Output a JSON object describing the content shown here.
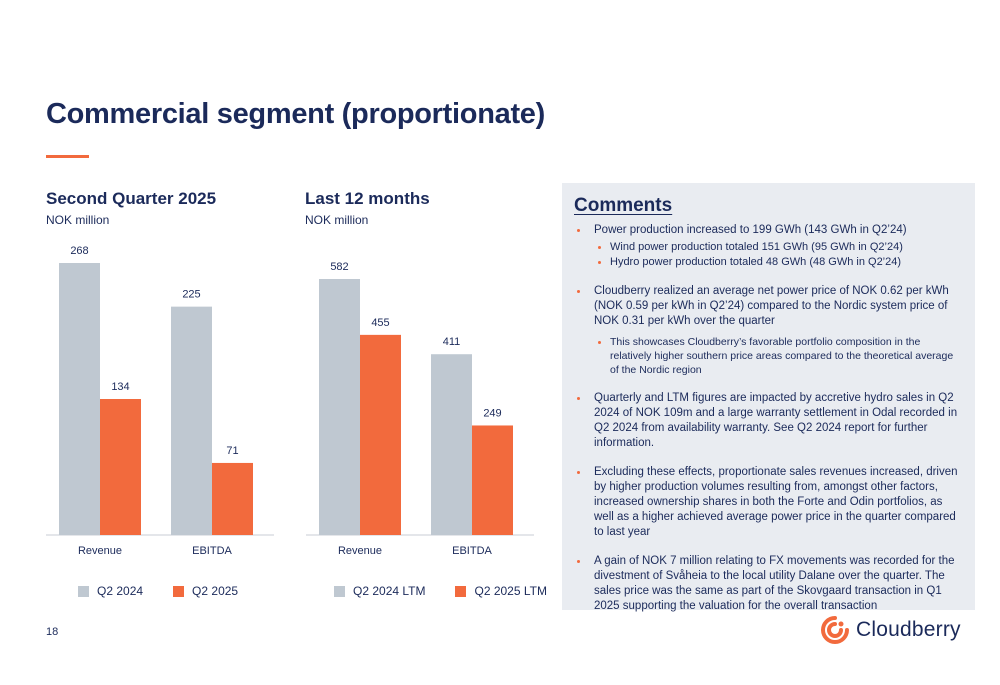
{
  "page": {
    "title": "Commercial segment (proportionate)",
    "page_number": "18"
  },
  "colors": {
    "accent": "#f26a3d",
    "navy": "#1b2a5a",
    "grey_bar": "#bfc8d1",
    "orange_bar": "#f26a3d",
    "panel_bg": "#e9ecf1"
  },
  "chart_left": {
    "title": "Second Quarter 2025",
    "unit": "NOK million",
    "legend": [
      "Q2 2024",
      "Q2 2025"
    ]
  },
  "chart_right": {
    "title": "Last 12 months",
    "unit": "NOK million",
    "legend": [
      "Q2 2024 LTM",
      "Q2 2025 LTM"
    ]
  },
  "chart_data": [
    {
      "type": "bar",
      "title": "Second Quarter 2025",
      "ylabel": "NOK million",
      "categories": [
        "Revenue",
        "EBITDA"
      ],
      "series": [
        {
          "name": "Q2 2024",
          "values": [
            268,
            225
          ]
        },
        {
          "name": "Q2 2025",
          "values": [
            134,
            71
          ]
        }
      ],
      "ylim": [
        0,
        268
      ],
      "grid": false,
      "legend_position": "bottom"
    },
    {
      "type": "bar",
      "title": "Last 12 months",
      "ylabel": "NOK million",
      "categories": [
        "Revenue",
        "EBITDA"
      ],
      "series": [
        {
          "name": "Q2 2024 LTM",
          "values": [
            582,
            411
          ]
        },
        {
          "name": "Q2 2025 LTM",
          "values": [
            455,
            249
          ]
        }
      ],
      "ylim": [
        0,
        582
      ],
      "grid": false,
      "legend_position": "bottom"
    }
  ],
  "comments": {
    "heading": "Comments",
    "bullets": [
      {
        "text": "Power production increased to 199 GWh (143 GWh in Q2’24)",
        "sub": [
          "Wind power production totaled 151 GWh (95 GWh in Q2’24)",
          "Hydro power production totaled 48 GWh (48 GWh in Q2’24)"
        ]
      },
      {
        "text": "Cloudberry realized an average net power price of NOK 0.62 per kWh (NOK 0.59 per kWh in Q2’24) compared to the Nordic system price of NOK 0.31 per kWh over the quarter",
        "sub": [
          "This showcases Cloudberry’s favorable portfolio composition in the relatively higher southern price areas compared to the theoretical average of the Nordic region"
        ]
      },
      {
        "text": "Quarterly and LTM figures are impacted by accretive hydro sales in Q2 2024 of NOK 109m and a large warranty settlement in Odal recorded in Q2 2024 from availability warranty. See Q2 2024 report for further information."
      },
      {
        "text": "Excluding these effects, proportionate sales revenues increased, driven by higher production volumes resulting from, amongst other factors, increased ownership shares in both the Forte and Odin portfolios, as well as a higher achieved average power price in the quarter compared to last year"
      },
      {
        "text": "A gain of NOK 7 million relating to FX movements was recorded for the divestment of Svåheia to the local utility Dalane over the quarter. The sales price was the same as part of the Skovgaard transaction in Q1 2025 supporting the valuation for the overall transaction"
      }
    ]
  },
  "logo": {
    "wordmark": "Cloudberry",
    "icon": "cloudberry-swirl-icon"
  }
}
